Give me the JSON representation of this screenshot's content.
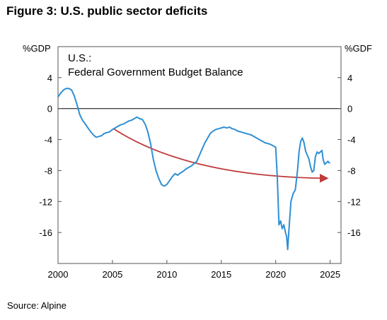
{
  "figure": {
    "title": "Figure 3: U.S. public sector deficits",
    "source": "Source: Alpine"
  },
  "colors": {
    "line": "#2f8fd4",
    "arrow": "#c0393b",
    "frame": "#555555",
    "zero_line": "#000000"
  },
  "chart_data": {
    "type": "line",
    "title": "U.S.:",
    "subtitle": "Federal Government Budget Balance",
    "ylabel_left": "%GDP",
    "ylabel_right": "%GDF",
    "xlim": [
      2000,
      2026
    ],
    "ylim": [
      -20,
      8
    ],
    "x_ticks": [
      2000,
      2005,
      2010,
      2015,
      2020,
      2025
    ],
    "y_ticks": [
      4,
      0,
      -4,
      -8,
      -12,
      -16
    ],
    "grid": false,
    "zero_line": true,
    "series": [
      {
        "points": [
          [
            2000.0,
            1.5
          ],
          [
            2000.25,
            2.0
          ],
          [
            2000.5,
            2.4
          ],
          [
            2000.75,
            2.6
          ],
          [
            2001.0,
            2.6
          ],
          [
            2001.25,
            2.4
          ],
          [
            2001.5,
            1.6
          ],
          [
            2001.75,
            0.5
          ],
          [
            2002.0,
            -0.8
          ],
          [
            2002.25,
            -1.5
          ],
          [
            2002.5,
            -2.0
          ],
          [
            2002.75,
            -2.5
          ],
          [
            2003.0,
            -3.0
          ],
          [
            2003.25,
            -3.4
          ],
          [
            2003.5,
            -3.7
          ],
          [
            2003.75,
            -3.6
          ],
          [
            2004.0,
            -3.5
          ],
          [
            2004.25,
            -3.2
          ],
          [
            2004.5,
            -3.1
          ],
          [
            2004.75,
            -3.0
          ],
          [
            2005.0,
            -2.7
          ],
          [
            2005.25,
            -2.5
          ],
          [
            2005.5,
            -2.3
          ],
          [
            2005.75,
            -2.1
          ],
          [
            2006.0,
            -2.0
          ],
          [
            2006.25,
            -1.8
          ],
          [
            2006.5,
            -1.6
          ],
          [
            2006.75,
            -1.5
          ],
          [
            2007.0,
            -1.3
          ],
          [
            2007.25,
            -1.1
          ],
          [
            2007.5,
            -1.3
          ],
          [
            2007.75,
            -1.4
          ],
          [
            2008.0,
            -2.0
          ],
          [
            2008.25,
            -3.0
          ],
          [
            2008.5,
            -4.5
          ],
          [
            2008.75,
            -6.5
          ],
          [
            2009.0,
            -8.0
          ],
          [
            2009.25,
            -9.0
          ],
          [
            2009.5,
            -9.8
          ],
          [
            2009.75,
            -10.0
          ],
          [
            2010.0,
            -9.8
          ],
          [
            2010.25,
            -9.3
          ],
          [
            2010.5,
            -8.8
          ],
          [
            2010.75,
            -8.4
          ],
          [
            2011.0,
            -8.6
          ],
          [
            2011.25,
            -8.3
          ],
          [
            2011.5,
            -8.1
          ],
          [
            2011.75,
            -7.8
          ],
          [
            2012.0,
            -7.6
          ],
          [
            2012.25,
            -7.4
          ],
          [
            2012.5,
            -7.1
          ],
          [
            2012.75,
            -6.8
          ],
          [
            2013.0,
            -6.0
          ],
          [
            2013.25,
            -5.2
          ],
          [
            2013.5,
            -4.4
          ],
          [
            2013.75,
            -3.8
          ],
          [
            2014.0,
            -3.2
          ],
          [
            2014.25,
            -2.9
          ],
          [
            2014.5,
            -2.7
          ],
          [
            2014.75,
            -2.6
          ],
          [
            2015.0,
            -2.5
          ],
          [
            2015.25,
            -2.4
          ],
          [
            2015.5,
            -2.5
          ],
          [
            2015.75,
            -2.4
          ],
          [
            2016.0,
            -2.6
          ],
          [
            2016.25,
            -2.7
          ],
          [
            2016.5,
            -2.9
          ],
          [
            2016.75,
            -3.0
          ],
          [
            2017.0,
            -3.1
          ],
          [
            2017.25,
            -3.2
          ],
          [
            2017.5,
            -3.3
          ],
          [
            2017.75,
            -3.4
          ],
          [
            2018.0,
            -3.6
          ],
          [
            2018.25,
            -3.8
          ],
          [
            2018.5,
            -4.0
          ],
          [
            2018.75,
            -4.2
          ],
          [
            2019.0,
            -4.4
          ],
          [
            2019.25,
            -4.5
          ],
          [
            2019.5,
            -4.6
          ],
          [
            2019.75,
            -4.8
          ],
          [
            2020.0,
            -5.0
          ],
          [
            2020.15,
            -9.0
          ],
          [
            2020.3,
            -15.0
          ],
          [
            2020.45,
            -14.5
          ],
          [
            2020.6,
            -15.5
          ],
          [
            2020.75,
            -15.0
          ],
          [
            2020.9,
            -16.0
          ],
          [
            2021.0,
            -16.5
          ],
          [
            2021.1,
            -18.2
          ],
          [
            2021.25,
            -15.0
          ],
          [
            2021.4,
            -12.0
          ],
          [
            2021.6,
            -11.0
          ],
          [
            2021.8,
            -10.5
          ],
          [
            2022.0,
            -8.0
          ],
          [
            2022.15,
            -5.5
          ],
          [
            2022.3,
            -4.2
          ],
          [
            2022.45,
            -3.8
          ],
          [
            2022.6,
            -4.4
          ],
          [
            2022.75,
            -5.5
          ],
          [
            2022.9,
            -6.0
          ],
          [
            2023.05,
            -6.5
          ],
          [
            2023.2,
            -7.5
          ],
          [
            2023.35,
            -8.2
          ],
          [
            2023.5,
            -8.0
          ],
          [
            2023.65,
            -6.2
          ],
          [
            2023.8,
            -5.6
          ],
          [
            2023.95,
            -5.8
          ],
          [
            2024.1,
            -5.6
          ],
          [
            2024.25,
            -5.4
          ],
          [
            2024.35,
            -6.5
          ],
          [
            2024.5,
            -7.2
          ],
          [
            2024.65,
            -7.0
          ],
          [
            2024.8,
            -6.8
          ],
          [
            2024.9,
            -7.0
          ],
          [
            2025.0,
            -7.0
          ]
        ]
      }
    ],
    "trend_arrow": {
      "from": [
        2005.1,
        -2.6
      ],
      "to": [
        2024.7,
        -9.0
      ]
    }
  }
}
